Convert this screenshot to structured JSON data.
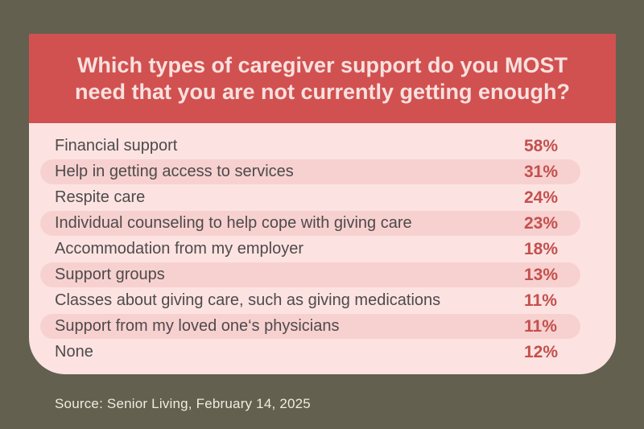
{
  "header": {
    "question": "Which types of caregiver support do you MOST need that you are not currently getting enough?",
    "lines": [
      "Which types of caregiver support do you MOST",
      "need that you are not currently getting enough?"
    ]
  },
  "list": {
    "items": [
      {
        "label": "Financial support",
        "value": "58%"
      },
      {
        "label": "Help in getting access to services",
        "value": "31%"
      },
      {
        "label": "Respite care",
        "value": "24%"
      },
      {
        "label": "Individual counseling to help cope with giving care",
        "value": "23%"
      },
      {
        "label": "Accommodation from my employer",
        "value": "18%"
      },
      {
        "label": "Support groups",
        "value": "13%"
      },
      {
        "label": "Classes about giving care, such as giving medications",
        "value": "11%"
      },
      {
        "label": "Support from my loved one‘s physicians",
        "value": "11%"
      },
      {
        "label": "None",
        "value": "12%"
      }
    ]
  },
  "source": {
    "text": "Source: Senior Living, February 14, 2025"
  },
  "colors": {
    "page_background": "#636050",
    "header_background": "#d15150",
    "header_text": "#f8e1df",
    "card_background": "#fce3e1",
    "row_highlight": "#f7d1d0",
    "label_text": "#4e4a4b",
    "value_text": "#c3504e",
    "source_text": "#efece0"
  },
  "chart_data": {
    "type": "table",
    "title": "Which types of caregiver support do you MOST need that you are not currently getting enough?",
    "categories": [
      "Financial support",
      "Help in getting access to services",
      "Respite care",
      "Individual counseling to help cope with giving care",
      "Accommodation from my employer",
      "Support groups",
      "Classes about giving care, such as giving medications",
      "Support from my loved one‘s physicians",
      "None"
    ],
    "values": [
      58,
      31,
      24,
      23,
      18,
      13,
      11,
      11,
      12
    ],
    "value_unit": "%",
    "source": "Source: Senior Living, February 14, 2025",
    "layout": "highlighted pill rows on even indices (2nd, 4th, 6th, 8th rows)"
  }
}
